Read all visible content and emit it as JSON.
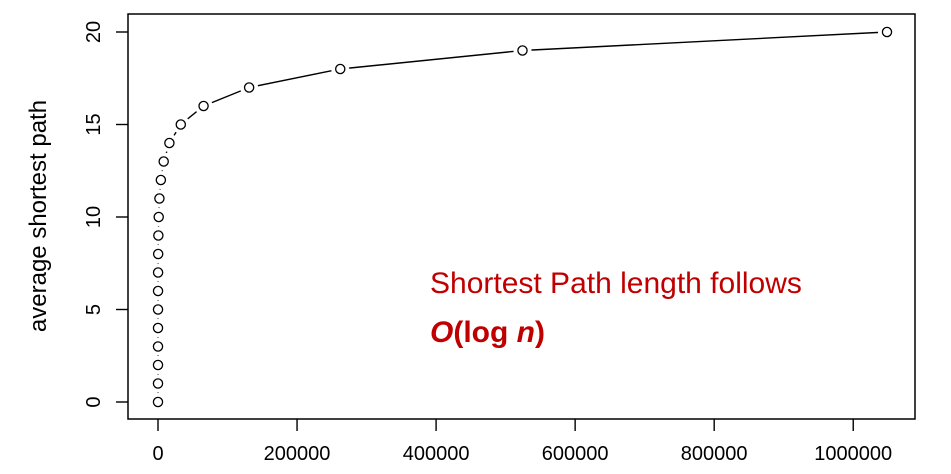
{
  "chart_data": {
    "type": "scatter",
    "title": "",
    "xlabel": "",
    "ylabel": "average shortest path",
    "xlim": [
      0,
      1050000
    ],
    "ylim": [
      0,
      20
    ],
    "xticks": [
      0,
      200000,
      400000,
      600000,
      800000,
      1000000
    ],
    "xtick_labels": [
      "0",
      "200000",
      "400000",
      "600000",
      "800000",
      "1000000"
    ],
    "yticks": [
      0,
      5,
      10,
      15,
      20
    ],
    "ytick_labels": [
      "0",
      "5",
      "10",
      "15",
      "20"
    ],
    "grid": false,
    "series": [
      {
        "marker": "open-circle",
        "line": "solid",
        "x": [
          1,
          2,
          4,
          8,
          16,
          32,
          64,
          128,
          256,
          512,
          1024,
          2048,
          4096,
          8192,
          16384,
          32768,
          65536,
          131072,
          262144,
          524288,
          1048576
        ],
        "y": [
          0,
          1,
          2,
          3,
          4,
          5,
          6,
          7,
          8,
          9,
          10,
          11,
          12,
          13,
          14,
          15,
          16,
          17,
          18,
          19,
          20
        ]
      }
    ],
    "annotation": {
      "line1": "Shortest Path length follows",
      "line2_bold_italic": "O",
      "line2_bold_open": "(log ",
      "line2_italic_bold": "n",
      "line2_bold_close": ")"
    }
  }
}
